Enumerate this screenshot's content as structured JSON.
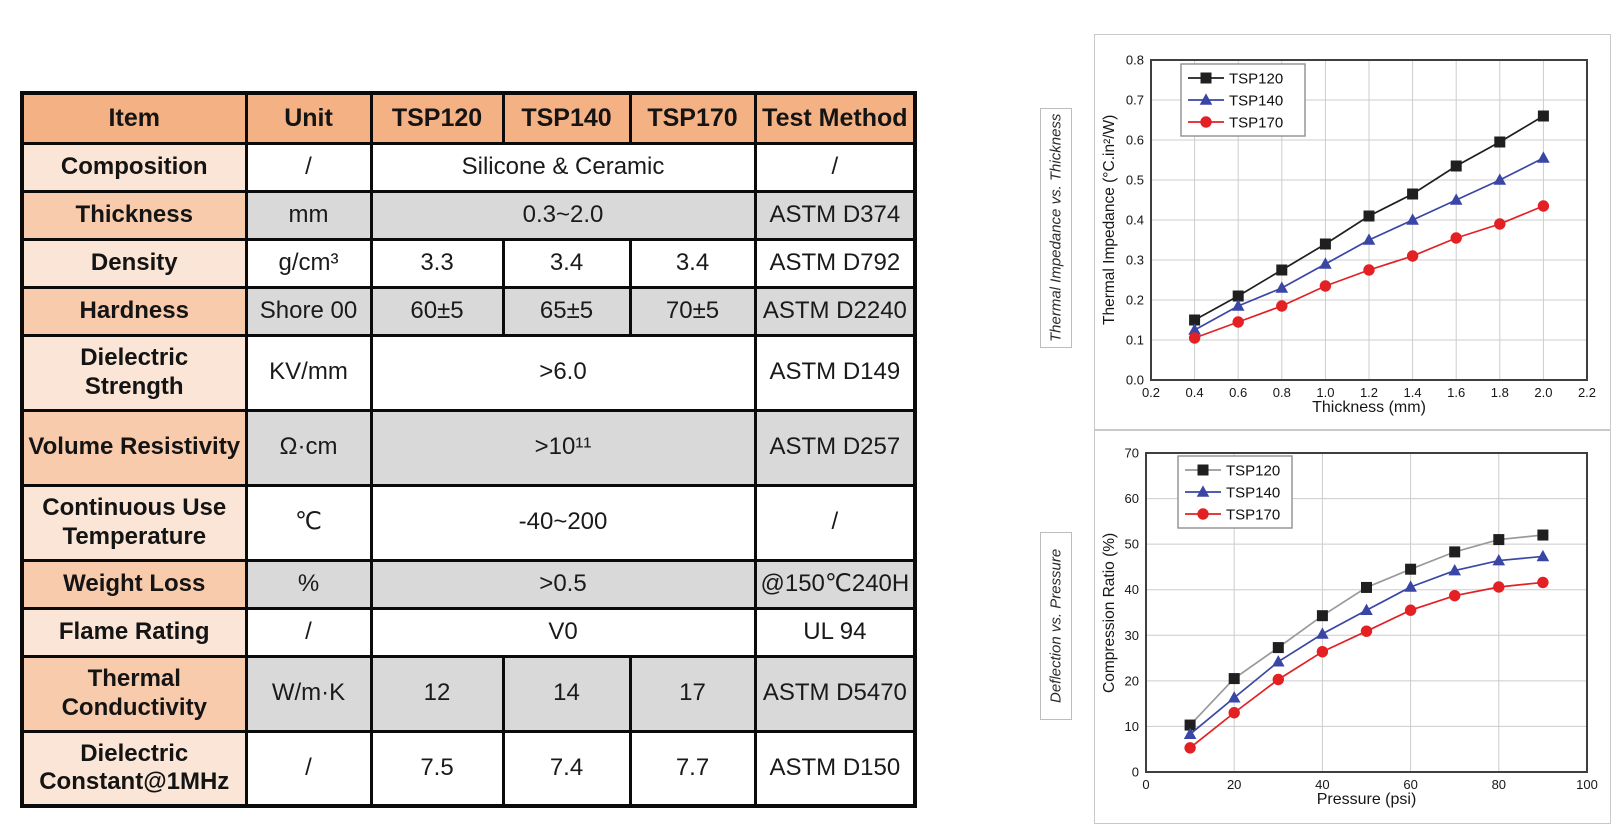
{
  "colors": {
    "header_bg": "#F4B183",
    "item_light": "#FBE5D6",
    "item_dark": "#F8CBAD",
    "cell_white": "#FFFFFF",
    "cell_gray": "#D9D9D9",
    "grid": "#CCCCCC",
    "plot_border": "#3F3F3F",
    "panel_border": "#C9C9C9",
    "legend_border": "#8F8F8F",
    "series_black": "#1F1F1F",
    "series_blue": "#3A46A5",
    "series_red": "#E32024",
    "series_gray_line": "#9A9A9A"
  },
  "table": {
    "columns": [
      "Item",
      "Unit",
      "TSP120",
      "TSP140",
      "TSP170",
      "Test Method"
    ],
    "rows": [
      {
        "item": "Composition",
        "unit": "/",
        "merged": true,
        "values": [
          "Silicone & Ceramic"
        ],
        "test": "/",
        "band": "white",
        "item_band": "light",
        "tall": false
      },
      {
        "item": "Thickness",
        "unit": "mm",
        "merged": true,
        "values": [
          "0.3~2.0"
        ],
        "test": "ASTM D374",
        "band": "gray",
        "item_band": "dark",
        "tall": false
      },
      {
        "item": "Density",
        "unit": "g/cm³",
        "merged": false,
        "values": [
          "3.3",
          "3.4",
          "3.4"
        ],
        "test": "ASTM D792",
        "band": "white",
        "item_band": "light",
        "tall": false
      },
      {
        "item": "Hardness",
        "unit": "Shore 00",
        "merged": false,
        "values": [
          "60±5",
          "65±5",
          "70±5"
        ],
        "test": "ASTM D2240",
        "band": "gray",
        "item_band": "dark",
        "tall": false
      },
      {
        "item": "Dielectric Strength",
        "unit": "KV/mm",
        "merged": true,
        "values": [
          ">6.0"
        ],
        "test": "ASTM D149",
        "band": "white",
        "item_band": "light",
        "tall": true
      },
      {
        "item": "Volume Resistivity",
        "unit": "Ω·cm",
        "merged": true,
        "values": [
          ">10¹¹"
        ],
        "test": "ASTM D257",
        "band": "gray",
        "item_band": "dark",
        "tall": true
      },
      {
        "item": "Continuous Use Temperature",
        "unit": "℃",
        "merged": true,
        "values": [
          "-40~200"
        ],
        "test": "/",
        "band": "white",
        "item_band": "light",
        "tall": true
      },
      {
        "item": "Weight Loss",
        "unit": "%",
        "merged": true,
        "values": [
          ">0.5"
        ],
        "test": "@150℃240H",
        "band": "gray",
        "item_band": "dark",
        "tall": false
      },
      {
        "item": "Flame Rating",
        "unit": "/",
        "merged": true,
        "values": [
          "V0"
        ],
        "test": "UL 94",
        "band": "white",
        "item_band": "light",
        "tall": false
      },
      {
        "item": "Thermal Conductivity",
        "unit": "W/m·K",
        "merged": false,
        "values": [
          "12",
          "14",
          "17"
        ],
        "test": "ASTM D5470",
        "band": "gray",
        "item_band": "dark",
        "tall": true
      },
      {
        "item": "Dielectric Constant@1MHz",
        "unit": "/",
        "merged": false,
        "values": [
          "7.5",
          "7.4",
          "7.7"
        ],
        "test": "ASTM D150",
        "band": "white",
        "item_band": "light",
        "tall": true
      }
    ]
  },
  "chart_data": [
    {
      "type": "line",
      "side_label": "Thermal Impedance vs. Thickness",
      "xlabel": "Thickness (mm)",
      "ylabel": "Thermal Impedance (°C.in²/W)",
      "xlim": [
        0.2,
        2.2
      ],
      "ylim": [
        0,
        0.8
      ],
      "xticks": [
        0.2,
        0.4,
        0.6,
        0.8,
        1.0,
        1.2,
        1.4,
        1.6,
        1.8,
        2.0,
        2.2
      ],
      "xtick_labels": [
        "0.2",
        "0.4",
        "0.6",
        "0.8",
        "1.0",
        "1.2",
        "1.4",
        "1.6",
        "1.8",
        "2.0",
        "2.2"
      ],
      "yticks": [
        0,
        0.1,
        0.2,
        0.3,
        0.4,
        0.5,
        0.6,
        0.7,
        0.8
      ],
      "ytick_labels": [
        "0.0",
        "0.1",
        "0.2",
        "0.3",
        "0.4",
        "0.5",
        "0.6",
        "0.7",
        "0.8"
      ],
      "grid": true,
      "legend_position": "top-left",
      "x": [
        0.4,
        0.6,
        0.8,
        1.0,
        1.2,
        1.4,
        1.6,
        1.8,
        2.0
      ],
      "series": [
        {
          "name": "TSP120",
          "marker": "square",
          "color": "#1F1F1F",
          "line_color": "#1F1F1F",
          "values": [
            0.15,
            0.21,
            0.275,
            0.34,
            0.41,
            0.465,
            0.535,
            0.595,
            0.66
          ]
        },
        {
          "name": "TSP140",
          "marker": "triangle",
          "color": "#3A46A5",
          "line_color": "#3A46A5",
          "values": [
            0.125,
            0.185,
            0.23,
            0.29,
            0.35,
            0.4,
            0.45,
            0.5,
            0.555
          ]
        },
        {
          "name": "TSP170",
          "marker": "circle",
          "color": "#E32024",
          "line_color": "#E32024",
          "values": [
            0.105,
            0.145,
            0.185,
            0.235,
            0.275,
            0.31,
            0.355,
            0.39,
            0.435
          ]
        }
      ]
    },
    {
      "type": "line",
      "side_label": "Deflection vs. Pressure",
      "xlabel": "Pressure (psi)",
      "ylabel": "Compression Ratio (%)",
      "xlim": [
        0,
        100
      ],
      "ylim": [
        0,
        70
      ],
      "xticks": [
        0,
        20,
        40,
        60,
        80,
        100
      ],
      "xtick_labels": [
        "0",
        "20",
        "40",
        "60",
        "80",
        "100"
      ],
      "yticks": [
        0,
        10,
        20,
        30,
        40,
        50,
        60,
        70
      ],
      "ytick_labels": [
        "0",
        "10",
        "20",
        "30",
        "40",
        "50",
        "60",
        "70"
      ],
      "grid": true,
      "legend_position": "top-left",
      "x": [
        10,
        20,
        30,
        40,
        50,
        60,
        70,
        80,
        90
      ],
      "series": [
        {
          "name": "TSP120",
          "marker": "square",
          "color": "#1F1F1F",
          "line_color": "#9A9A9A",
          "values": [
            10.3,
            20.5,
            27.3,
            34.3,
            40.5,
            44.5,
            48.3,
            51.0,
            52.0
          ]
        },
        {
          "name": "TSP140",
          "marker": "triangle",
          "color": "#3A46A5",
          "line_color": "#3A46A5",
          "values": [
            8.3,
            16.3,
            24.2,
            30.3,
            35.5,
            40.6,
            44.2,
            46.4,
            47.3
          ]
        },
        {
          "name": "TSP170",
          "marker": "circle",
          "color": "#E32024",
          "line_color": "#E32024",
          "values": [
            5.3,
            13.0,
            20.3,
            26.4,
            30.9,
            35.5,
            38.7,
            40.6,
            41.6
          ]
        }
      ]
    }
  ]
}
